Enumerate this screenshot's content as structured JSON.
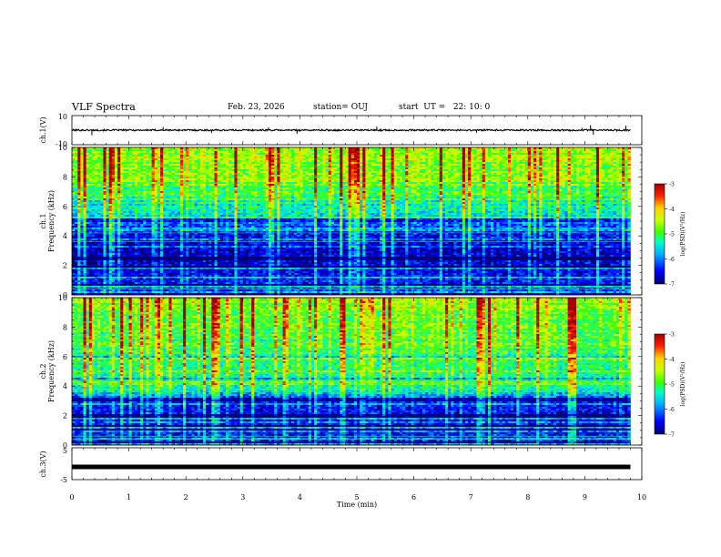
{
  "header": {
    "title": "VLF Spectra",
    "date": "Feb. 23, 2026",
    "station": "station= OUJ",
    "start": "start  UT =   22: 10: 0"
  },
  "chart_data": [
    {
      "type": "line",
      "id": "ch1-waveform",
      "ylabel": "ch.1(V)",
      "ylim": [
        -10,
        10
      ],
      "yticks": [
        "10",
        "-10"
      ],
      "baseline": 0,
      "xlim": [
        0,
        10
      ],
      "impulses": [
        {
          "t": 0.35,
          "v": -3.5
        },
        {
          "t": 1.6,
          "v": 2.2
        },
        {
          "t": 2.45,
          "v": -2.0
        },
        {
          "t": 3.45,
          "v": 1.8
        },
        {
          "t": 3.95,
          "v": -2.5
        },
        {
          "t": 5.35,
          "v": 2.4
        },
        {
          "t": 7.1,
          "v": -1.8
        },
        {
          "t": 8.95,
          "v": 1.6
        },
        {
          "t": 9.1,
          "v": 3.4
        },
        {
          "t": 9.15,
          "v": -3.2
        },
        {
          "t": 9.72,
          "v": 3.0
        }
      ]
    },
    {
      "type": "heatmap",
      "id": "ch1-spectrogram",
      "ylabel": "ch.1\nFrequency  (kHz)",
      "ylabel_line1": "ch.1",
      "ylabel_line2": "Frequency  (kHz)",
      "ylim": [
        0,
        10
      ],
      "yticks": [
        0,
        2,
        4,
        6,
        8,
        10
      ],
      "xlim": [
        0,
        9.8
      ],
      "seed": 7,
      "mean_log_profile": [
        [
          0,
          -6.3
        ],
        [
          1.5,
          -6.6
        ],
        [
          3,
          -6.8
        ],
        [
          4.5,
          -6.4
        ],
        [
          5.5,
          -5.6
        ],
        [
          7,
          -5.0
        ],
        [
          8.5,
          -4.7
        ],
        [
          10,
          -4.6
        ]
      ],
      "colorbar": {
        "label": "log(PSD)(V²/Hz)",
        "range": [
          -7,
          -3
        ],
        "ticks": [
          -3,
          -4,
          -5,
          -6,
          -7
        ]
      }
    },
    {
      "type": "heatmap",
      "id": "ch2-spectrogram",
      "ylabel": "ch.2\nFrequency  (kHz)",
      "ylabel_line1": "ch.2",
      "ylabel_line2": "Frequency  (kHz)",
      "ylim": [
        0,
        10
      ],
      "yticks": [
        0,
        2,
        4,
        6,
        8,
        10
      ],
      "xlim": [
        0,
        9.8
      ],
      "seed": 23,
      "mean_log_profile": [
        [
          0,
          -6.4
        ],
        [
          1.5,
          -6.6
        ],
        [
          3,
          -6.5
        ],
        [
          3.8,
          -5.4
        ],
        [
          5,
          -5.3
        ],
        [
          7,
          -5.0
        ],
        [
          8.5,
          -4.8
        ],
        [
          10,
          -4.7
        ]
      ],
      "colorbar": {
        "label": "log(PSD)(V²/Hz)",
        "range": [
          -7,
          -3
        ],
        "ticks": [
          -3,
          -4,
          -5,
          -6,
          -7
        ]
      }
    },
    {
      "type": "line",
      "id": "ch3-waveform",
      "ylabel": "ch.3(V)",
      "ylim": [
        -5,
        5
      ],
      "yticks": [
        "5",
        "-5"
      ],
      "baseline": -1,
      "xlim": [
        0,
        10
      ],
      "xlabel": "Time  (min)",
      "xticks": [
        0,
        1,
        2,
        3,
        4,
        5,
        6,
        7,
        8,
        9,
        10
      ]
    }
  ]
}
